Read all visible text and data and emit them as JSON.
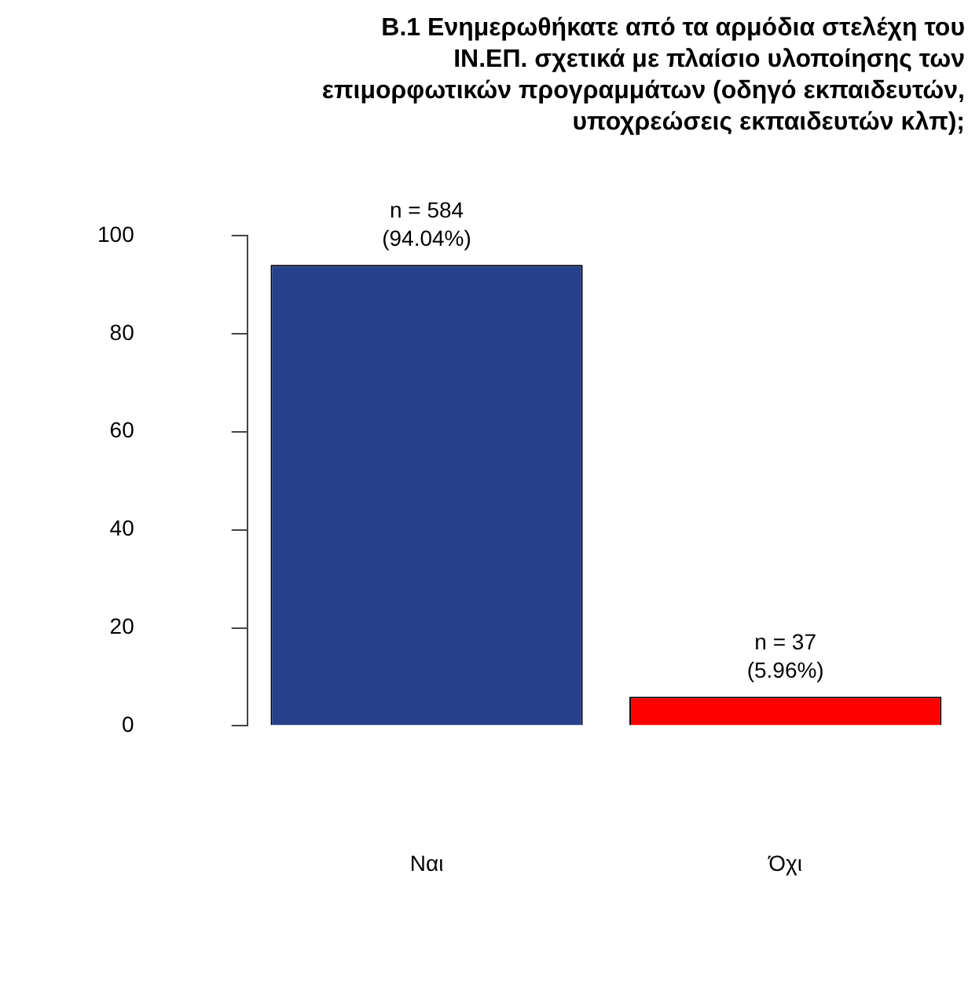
{
  "chart_data": {
    "type": "bar",
    "title": "B.1 Ενημερωθήκατε από τα αρμόδια στελέχη του\nΙΝ.ΕΠ. σχετικά με πλαίσιο υλοποίησης των\nεπιμορφωτικών προγραμμάτων (οδηγό εκπαιδευτών,\nυποχρεώσεις εκπαιδευτών κλπ);",
    "categories": [
      "Ναι",
      "Όχι"
    ],
    "values": [
      94.04,
      5.96
    ],
    "colors": [
      "#26408b",
      "#ff0000"
    ],
    "value_labels": [
      "n = 584\n(94.04%)",
      "n = 37\n(5.96%)"
    ],
    "ylim": [
      0,
      100
    ],
    "yticks": [
      0,
      20,
      40,
      60,
      80,
      100
    ],
    "grid": false,
    "legend": false
  }
}
